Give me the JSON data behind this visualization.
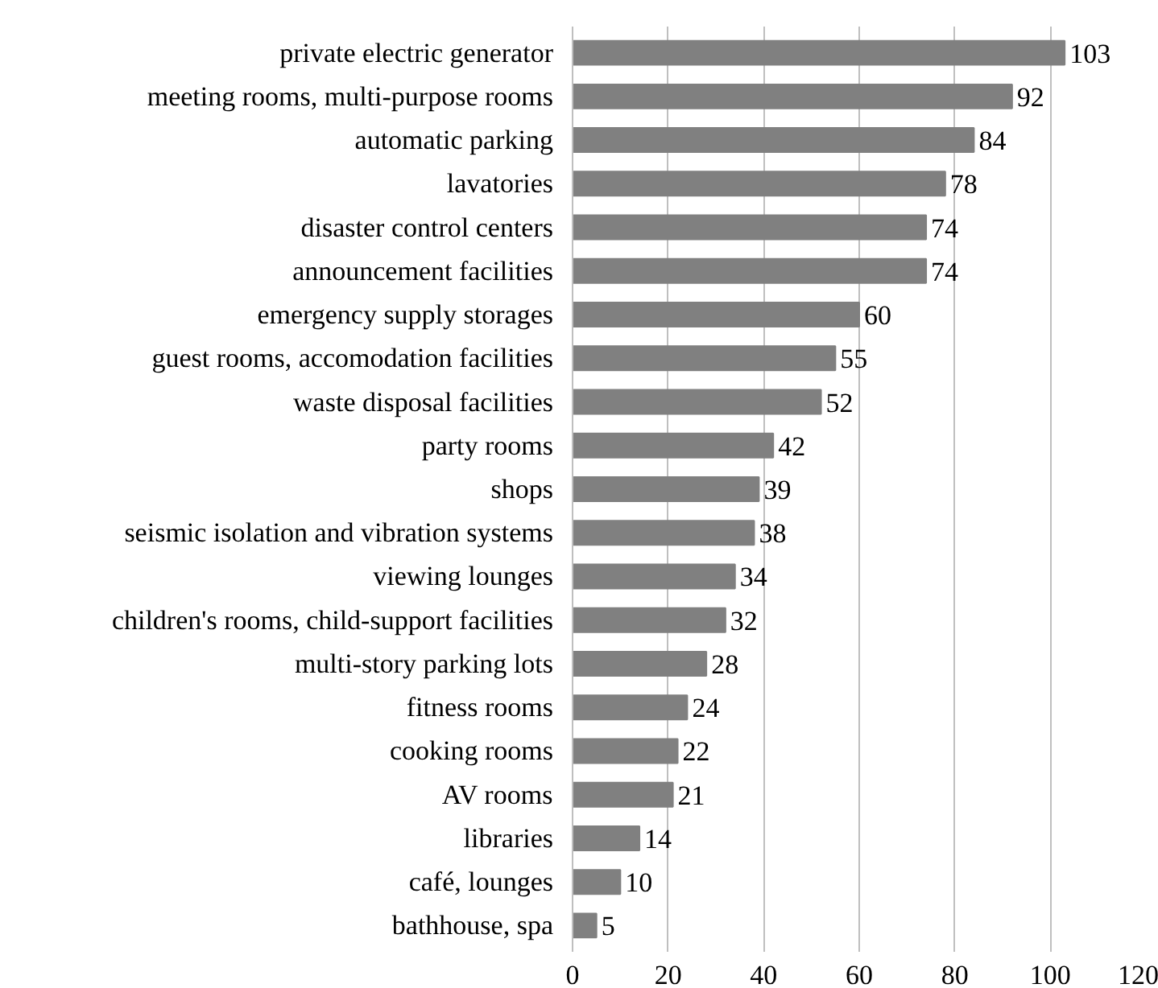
{
  "chart_data": {
    "type": "bar",
    "orientation": "horizontal",
    "categories": [
      "private electric generator",
      "meeting rooms, multi-purpose rooms",
      "automatic parking",
      "lavatories",
      "disaster control centers",
      "announcement facilities",
      "emergency supply storages",
      "guest rooms, accomodation facilities",
      "waste disposal facilities",
      "party rooms",
      "shops",
      "seismic isolation and vibration systems",
      "viewing lounges",
      "children's rooms, child-support facilities",
      "multi-story parking lots",
      "fitness rooms",
      "cooking rooms",
      "AV rooms",
      "libraries",
      "café, lounges",
      "bathhouse, spa"
    ],
    "values": [
      103,
      92,
      84,
      78,
      74,
      74,
      60,
      55,
      52,
      42,
      39,
      38,
      34,
      32,
      28,
      24,
      22,
      21,
      14,
      10,
      5
    ],
    "color": "#808080",
    "xlim": [
      0,
      120
    ],
    "xticks": [
      0,
      20,
      40,
      60,
      80,
      100,
      120
    ],
    "grid": "x",
    "data_labels": true
  }
}
